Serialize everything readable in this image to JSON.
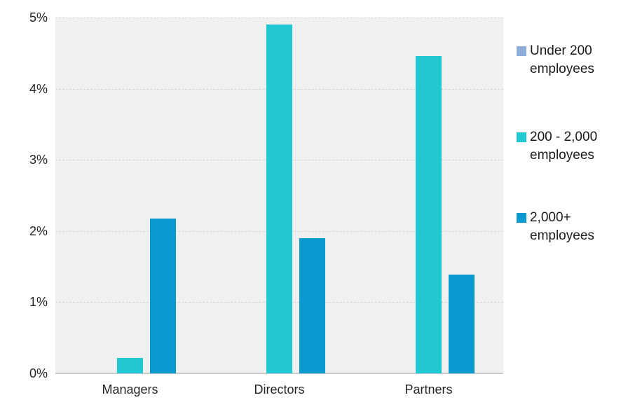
{
  "chart_data": {
    "type": "bar",
    "title": "",
    "xlabel": "",
    "ylabel": "",
    "categories": [
      "Managers",
      "Directors",
      "Partners"
    ],
    "series": [
      {
        "name": "Under 200 employees",
        "legend_lines": [
          "Under 200",
          "employees"
        ],
        "color": "#8FAFDA",
        "values": [
          0,
          0,
          0
        ]
      },
      {
        "name": "200 - 2,000 employees",
        "legend_lines": [
          "200 - 2,000",
          "employees"
        ],
        "color": "#21C7D1",
        "values": [
          0.22,
          4.9,
          4.46
        ]
      },
      {
        "name": "2,000+ employees",
        "legend_lines": [
          "2,000+",
          "employees"
        ],
        "color": "#0899CE",
        "values": [
          2.18,
          1.9,
          1.39
        ]
      }
    ],
    "ylim": [
      0,
      5
    ],
    "ytick_labels": [
      "0%",
      "1%",
      "2%",
      "3%",
      "4%",
      "5%"
    ],
    "grid": true,
    "legend_position": "right",
    "plot_background": "#f0f0f0",
    "gridline_color": "#d5d5d5",
    "axis_line_color": "#cbcbcb",
    "text_color": "#262626"
  }
}
